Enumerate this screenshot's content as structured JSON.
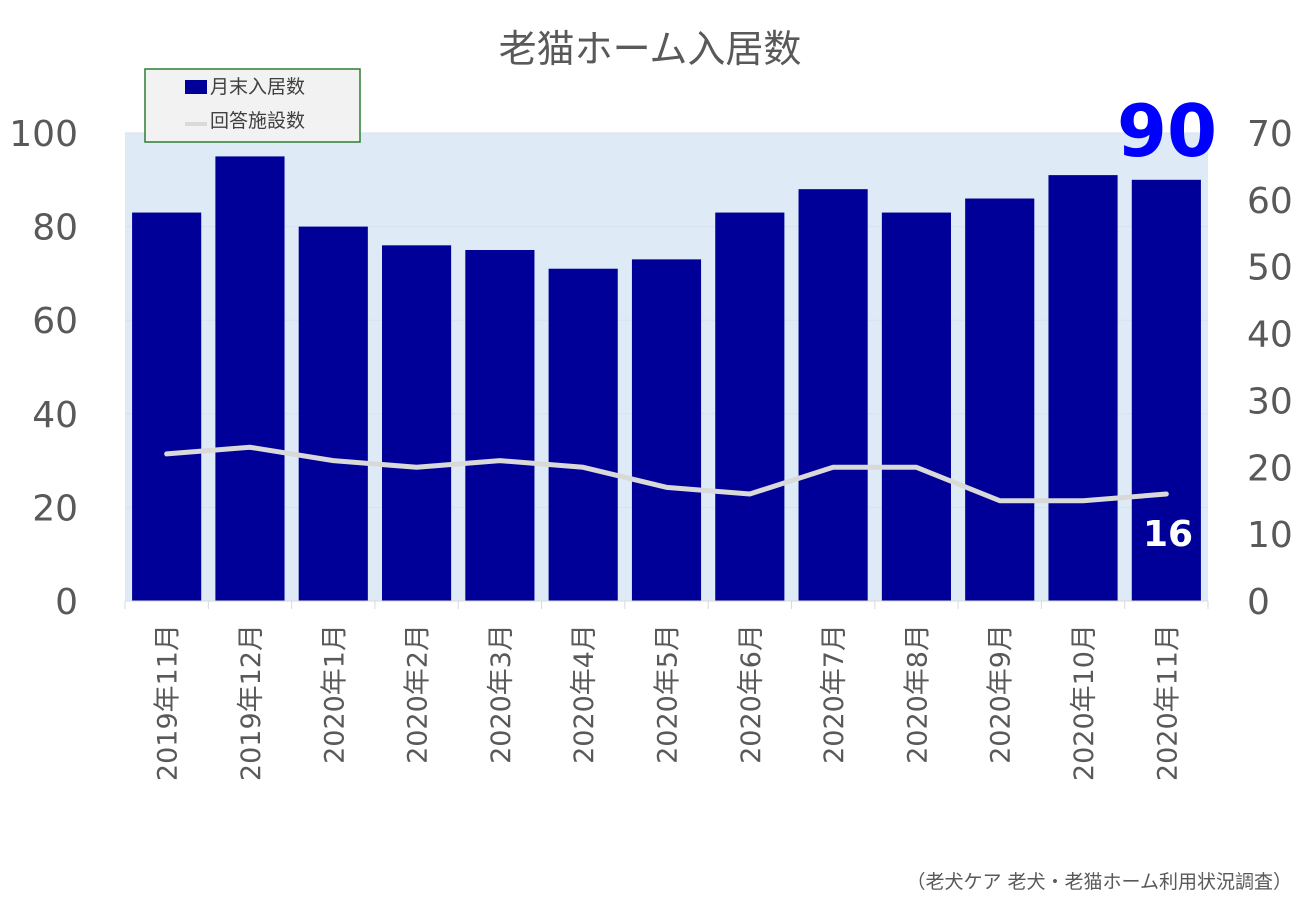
{
  "chart_data": {
    "type": "bar",
    "title": "老猫ホーム入居数",
    "categories": [
      "2019年11月",
      "2019年12月",
      "2020年1月",
      "2020年2月",
      "2020年3月",
      "2020年4月",
      "2020年5月",
      "2020年6月",
      "2020年7月",
      "2020年8月",
      "2020年9月",
      "2020年10月",
      "2020年11月"
    ],
    "series": [
      {
        "name": "月末入居数",
        "axis": "left",
        "kind": "bar",
        "color": "#000099",
        "values": [
          83,
          95,
          80,
          76,
          75,
          71,
          73,
          83,
          88,
          83,
          86,
          91,
          90
        ]
      },
      {
        "name": "回答施設数",
        "axis": "right",
        "kind": "line",
        "color": "#d9d9d9",
        "values": [
          22,
          23,
          21,
          20,
          21,
          20,
          17,
          16,
          20,
          20,
          15,
          15,
          16
        ]
      }
    ],
    "ylim": [
      0,
      100
    ],
    "y_ticks": [
      "0",
      "20",
      "40",
      "60",
      "80",
      "100"
    ],
    "y2lim": [
      0,
      70
    ],
    "y2_ticks": [
      "0",
      "10",
      "20",
      "30",
      "40",
      "50",
      "60",
      "70"
    ],
    "legend": [
      "月末入居数",
      "回答施設数"
    ],
    "legend_position": "top-left",
    "plot_background": "#deebf7",
    "grid": true,
    "annotations": {
      "bar_last": "90",
      "bar_last_color": "#0000ff",
      "line_last": "16"
    },
    "source": "（老犬ケア 老犬・老猫ホーム利用状況調査）"
  }
}
